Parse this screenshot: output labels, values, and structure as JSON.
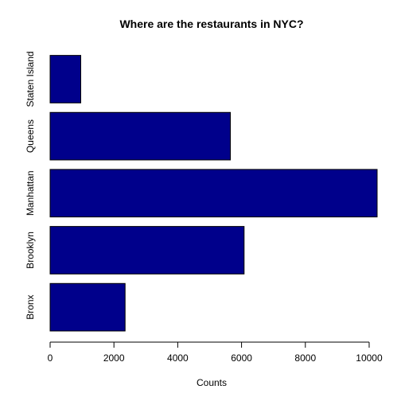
{
  "chart_data": {
    "type": "bar",
    "orientation": "horizontal",
    "title": "Where are the restaurants in NYC?",
    "xlabel": "Counts",
    "ylabel": "",
    "categories": [
      "Bronx",
      "Brooklyn",
      "Manhattan",
      "Queens",
      "Staten Island"
    ],
    "values": [
      2350,
      6080,
      10250,
      5650,
      960
    ],
    "xlim": [
      0,
      10250
    ],
    "xticks": [
      0,
      2000,
      4000,
      6000,
      8000,
      10000
    ],
    "xtick_labels": [
      "0",
      "2000",
      "4000",
      "6000",
      "8000",
      "10000"
    ],
    "grid": false,
    "legend": "none",
    "colors": {
      "bar_fill": "#00008B",
      "bar_stroke": "#000000",
      "axis": "#000000",
      "background": "#ffffff"
    }
  }
}
